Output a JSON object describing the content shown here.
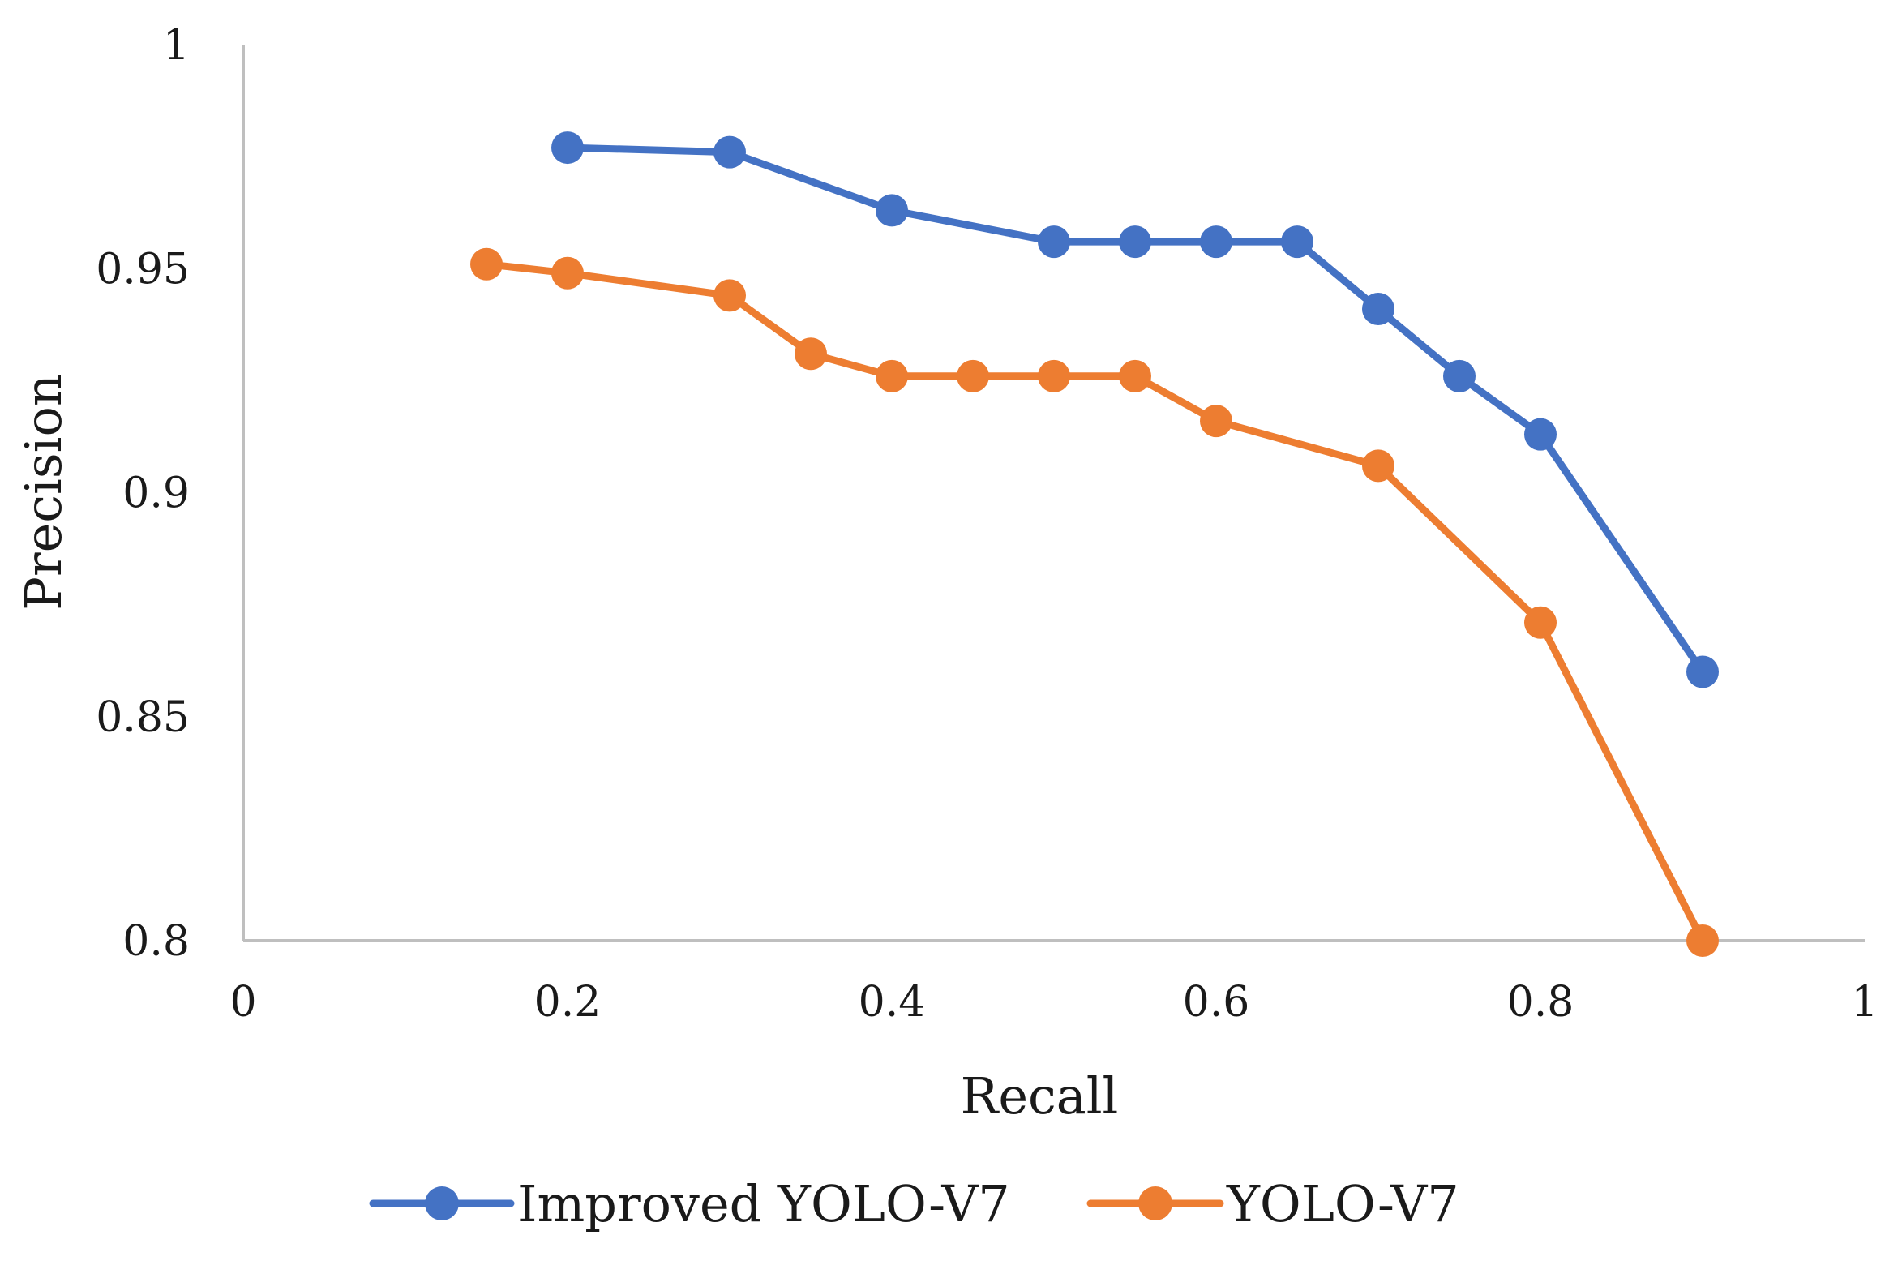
{
  "chart_data": {
    "type": "line",
    "title": "",
    "xlabel": "Recall",
    "ylabel": "Precision",
    "xlim": [
      0,
      1
    ],
    "ylim": [
      0.8,
      1
    ],
    "xticks": [
      0,
      0.2,
      0.4,
      0.6,
      0.8,
      1
    ],
    "xtick_labels": [
      "0",
      "0.2",
      "0.4",
      "0.6",
      "0.8",
      "1"
    ],
    "yticks": [
      0.8,
      0.85,
      0.9,
      0.95,
      1
    ],
    "ytick_labels": [
      "0.8",
      "0.85",
      "0.9",
      "0.95",
      "1"
    ],
    "grid": false,
    "legend_position": "bottom",
    "series": [
      {
        "name": "Improved YOLO-V7",
        "color": "#4472c4",
        "x": [
          0.2,
          0.3,
          0.4,
          0.5,
          0.55,
          0.6,
          0.65,
          0.7,
          0.75,
          0.8,
          0.9
        ],
        "y": [
          0.977,
          0.976,
          0.963,
          0.956,
          0.956,
          0.956,
          0.956,
          0.941,
          0.926,
          0.913,
          0.86
        ]
      },
      {
        "name": "YOLO-V7",
        "color": "#ed7d31",
        "x": [
          0.15,
          0.2,
          0.3,
          0.35,
          0.4,
          0.45,
          0.5,
          0.55,
          0.6,
          0.7,
          0.8,
          0.9
        ],
        "y": [
          0.951,
          0.949,
          0.944,
          0.931,
          0.926,
          0.926,
          0.926,
          0.926,
          0.916,
          0.906,
          0.871,
          0.8
        ]
      }
    ]
  }
}
